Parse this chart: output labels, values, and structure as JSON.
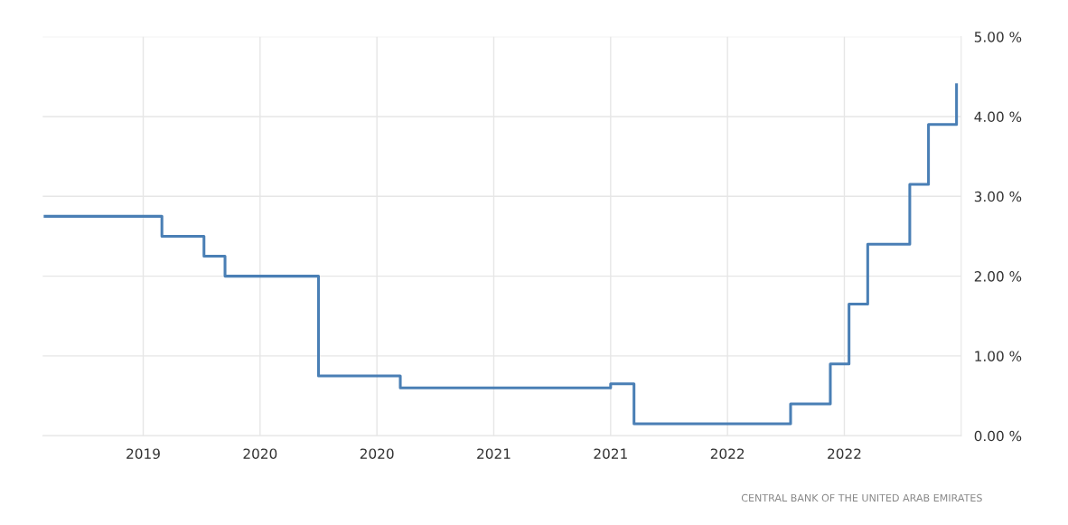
{
  "chart_data": {
    "type": "step",
    "x": [
      2019.08,
      2019.58,
      2019.76,
      2019.85,
      2020.25,
      2020.6,
      2021.5,
      2021.6,
      2022.27,
      2022.44,
      2022.52,
      2022.6,
      2022.78,
      2022.86,
      2022.98
    ],
    "series": [
      {
        "color": "#4a7fb5",
        "values": [
          2.75,
          2.5,
          2.25,
          2.0,
          0.75,
          0.6,
          0.65,
          0.15,
          0.4,
          0.9,
          1.65,
          2.4,
          3.15,
          3.9,
          4.4
        ]
      }
    ],
    "xlim": [
      2019.07,
      2023.0
    ],
    "xticks": [
      {
        "value": 2019.5,
        "label": "2019"
      },
      {
        "value": 2020.0,
        "label": "2020"
      },
      {
        "value": 2020.5,
        "label": "2020"
      },
      {
        "value": 2021.0,
        "label": "2021"
      },
      {
        "value": 2021.5,
        "label": "2021"
      },
      {
        "value": 2022.0,
        "label": "2022"
      },
      {
        "value": 2022.5,
        "label": "2022"
      }
    ],
    "ylim": [
      0,
      5
    ],
    "yticks": [
      {
        "value": 0,
        "label": "0.00 %"
      },
      {
        "value": 1,
        "label": "1.00 %"
      },
      {
        "value": 2,
        "label": "2.00 %"
      },
      {
        "value": 3,
        "label": "3.00 %"
      },
      {
        "value": 4,
        "label": "4.00 %"
      },
      {
        "value": 5,
        "label": "5.00 %"
      }
    ],
    "grid": true,
    "annotations": [
      "CENTRAL BANK OF THE UNITED ARAB EMIRATES"
    ]
  }
}
